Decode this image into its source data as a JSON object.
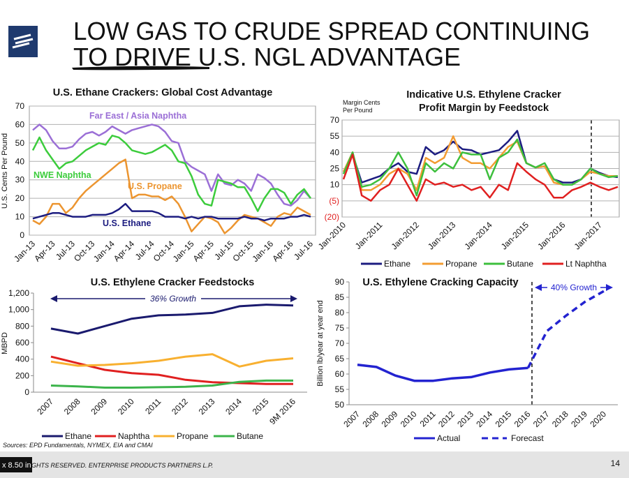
{
  "title": [
    "LOW GAS TO CRUDE SPREAD CONTINUING",
    "TO DRIVE U.S. NGL ADVANTAGE"
  ],
  "sources": "Sources:  EPD Fundamentals, NYMEX, EIA and CMAI",
  "footer": "GHTS RESERVED. ENTERPRISE PRODUCTS PARTNERS L.P.",
  "page_number": "14",
  "ruler_tooltip": "x 8.50 in",
  "chart_data": [
    {
      "type": "line",
      "title": [
        "U.S. Ethane Crackers:  Global Cost Advantage"
      ],
      "y_label": [
        "U.S. Cents Per Pound"
      ],
      "categories": [
        "Jan-13",
        null,
        null,
        "Apr-13",
        null,
        null,
        "Jul-13",
        null,
        null,
        "Oct-13",
        null,
        null,
        "Jan-14",
        null,
        null,
        "Apr-14",
        null,
        null,
        "Jul-14",
        null,
        null,
        "Oct-14",
        null,
        null,
        "Jan-15",
        null,
        null,
        "Apr-15",
        null,
        null,
        "Jul-15",
        null,
        null,
        "Oct-15",
        null,
        null,
        "Jan-16",
        null,
        null,
        "Apr-16",
        null,
        null,
        "Jul-16"
      ],
      "ylim": [
        0,
        70
      ],
      "yticks": [
        0,
        10,
        20,
        30,
        40,
        50,
        60,
        70
      ],
      "grid": true,
      "series": [
        {
          "name": "Far East / Asia Naphtha",
          "color": "#9b6fd6",
          "values": [
            57,
            60,
            57,
            51,
            47,
            47,
            48,
            52,
            55,
            56,
            54,
            56,
            59,
            57,
            55,
            57,
            58,
            59,
            60,
            59,
            56,
            51,
            50,
            40,
            37,
            35,
            33,
            24,
            33,
            28,
            27,
            30,
            28,
            24,
            33,
            31,
            28,
            22,
            17,
            16,
            19,
            24,
            20
          ]
        },
        {
          "name": "NWE Naphtha",
          "color": "#3ccc3c",
          "values": [
            46,
            53,
            46,
            41,
            36,
            39,
            40,
            43,
            46,
            48,
            50,
            49,
            54,
            53,
            50,
            46,
            45,
            44,
            45,
            47,
            49,
            46,
            40,
            39,
            32,
            22,
            17,
            16,
            30,
            29,
            28,
            26,
            26,
            20,
            13,
            20,
            25,
            25,
            23,
            17,
            22,
            25,
            20
          ]
        },
        {
          "name": "U.S. Propane",
          "color": "#ec9530",
          "values": [
            8,
            6,
            10,
            17,
            17,
            12,
            15,
            20,
            24,
            27,
            30,
            33,
            36,
            39,
            41,
            20,
            22,
            22,
            21,
            21,
            19,
            21,
            17,
            10,
            2,
            6,
            10,
            9,
            7,
            1,
            4,
            8,
            11,
            10,
            9,
            7,
            5,
            10,
            12,
            11,
            15,
            13,
            11
          ]
        },
        {
          "name": "U.S. Ethane",
          "color": "#1c1c80",
          "values": [
            9,
            10,
            11,
            12,
            12,
            11,
            10,
            10,
            10,
            11,
            11,
            11,
            12,
            14,
            17,
            13,
            13,
            13,
            13,
            12,
            10,
            10,
            10,
            9,
            10,
            9,
            10,
            10,
            9,
            9,
            9,
            9,
            10,
            9,
            9,
            8,
            9,
            9,
            9,
            10,
            10,
            11,
            10
          ]
        }
      ]
    },
    {
      "type": "line",
      "title": [
        "Indicative U.S. Ethylene Cracker",
        "Profit Margin by Feedstock"
      ],
      "y_label": [
        "Margin Cents",
        "Per Pound"
      ],
      "categories": [
        "Jan-2010",
        null,
        null,
        null,
        "Jan-2011",
        null,
        null,
        null,
        "Jan-2012",
        null,
        null,
        null,
        "Jan-2013",
        null,
        null,
        null,
        "Jan-2014",
        null,
        null,
        null,
        "Jan-2015",
        null,
        null,
        null,
        "Jan-2016",
        null,
        null,
        null,
        "Jan-2017",
        null,
        null
      ],
      "ylim": [
        -20,
        70
      ],
      "yticks": [
        {
          "value": -20,
          "label": "(20)"
        },
        {
          "value": -5,
          "label": "(5)"
        },
        10,
        25,
        40,
        55,
        70
      ],
      "grid": true,
      "legend": "bottom",
      "series": [
        {
          "name": "Ethane",
          "color": "#1c1c80",
          "values": [
            22,
            38,
            12,
            15,
            18,
            25,
            30,
            22,
            20,
            45,
            38,
            42,
            50,
            43,
            42,
            38,
            40,
            42,
            50,
            60,
            30,
            26,
            27,
            15,
            12,
            12,
            15,
            25,
            21,
            18,
            17
          ]
        },
        {
          "name": "Propane",
          "color": "#f39c32",
          "values": [
            22,
            40,
            5,
            5,
            10,
            20,
            25,
            20,
            5,
            35,
            30,
            35,
            55,
            35,
            30,
            30,
            25,
            35,
            45,
            50,
            30,
            26,
            27,
            12,
            10,
            10,
            15,
            22,
            20,
            18,
            18
          ]
        },
        {
          "name": "Butane",
          "color": "#3dbf3d",
          "values": [
            20,
            40,
            8,
            10,
            15,
            25,
            40,
            25,
            0,
            30,
            22,
            30,
            25,
            40,
            38,
            38,
            15,
            35,
            40,
            52,
            30,
            26,
            30,
            15,
            10,
            10,
            15,
            25,
            20,
            17,
            18
          ]
        },
        {
          "name": "Lt Naphtha",
          "color": "#e02020",
          "values": [
            15,
            38,
            0,
            -5,
            5,
            10,
            25,
            10,
            -5,
            15,
            10,
            12,
            8,
            10,
            5,
            8,
            -2,
            10,
            5,
            30,
            22,
            15,
            10,
            -2,
            -2,
            5,
            8,
            12,
            8,
            5,
            8
          ]
        }
      ]
    },
    {
      "type": "line",
      "title": [
        "U.S. Ethylene Cracker Feedstocks"
      ],
      "y_label": [
        "MBPD"
      ],
      "annotation": "36% Growth",
      "categories": [
        "2007",
        "2008",
        "2009",
        "2010",
        "2011",
        "2012",
        "2013",
        "2014",
        "2015",
        "9M 2016"
      ],
      "ylim": [
        0,
        1200
      ],
      "yticks": [
        0,
        200,
        400,
        600,
        800,
        {
          "value": 1000,
          "label": "1,000"
        },
        {
          "value": 1200,
          "label": "1,200"
        }
      ],
      "grid": false,
      "legend": "bottom",
      "series": [
        {
          "name": "Ethane",
          "color": "#1a1a6e",
          "values": [
            770,
            710,
            800,
            890,
            930,
            940,
            960,
            1040,
            1060,
            1050
          ]
        },
        {
          "name": "Naphtha",
          "color": "#e02020",
          "values": [
            430,
            350,
            270,
            230,
            210,
            150,
            120,
            110,
            100,
            100
          ]
        },
        {
          "name": "Propane",
          "color": "#f8b030",
          "values": [
            370,
            320,
            330,
            350,
            380,
            430,
            460,
            310,
            380,
            410
          ]
        },
        {
          "name": "Butane",
          "color": "#3cb44b",
          "values": [
            80,
            70,
            55,
            55,
            60,
            65,
            80,
            125,
            140,
            140
          ]
        }
      ]
    },
    {
      "type": "line",
      "title": [
        "U.S. Ethylene Cracking Capacity"
      ],
      "y_label": [
        "Billion lb/year at year end"
      ],
      "annotation": "40% Growth",
      "categories": [
        "2007",
        "2008",
        "2009",
        "2010",
        "2011",
        "2012",
        "2013",
        "2014",
        "2015",
        "2016",
        "2017",
        "2018",
        "2019",
        "2020"
      ],
      "ylim": [
        50,
        90
      ],
      "yticks": [
        50,
        55,
        60,
        65,
        70,
        75,
        80,
        85,
        90
      ],
      "grid": false,
      "legend": "bottom",
      "series": [
        {
          "name": "Actual",
          "color": "#2323d0",
          "values": [
            63,
            62.3,
            59.5,
            57.8,
            57.8,
            58.6,
            59,
            60.5,
            61.5,
            62,
            null,
            null,
            null,
            null
          ]
        },
        {
          "name": "Forecast",
          "color": "#2323d0",
          "dashed": true,
          "values": [
            null,
            null,
            null,
            null,
            null,
            null,
            null,
            null,
            null,
            62,
            74,
            79,
            83.5,
            87
          ]
        }
      ]
    }
  ]
}
